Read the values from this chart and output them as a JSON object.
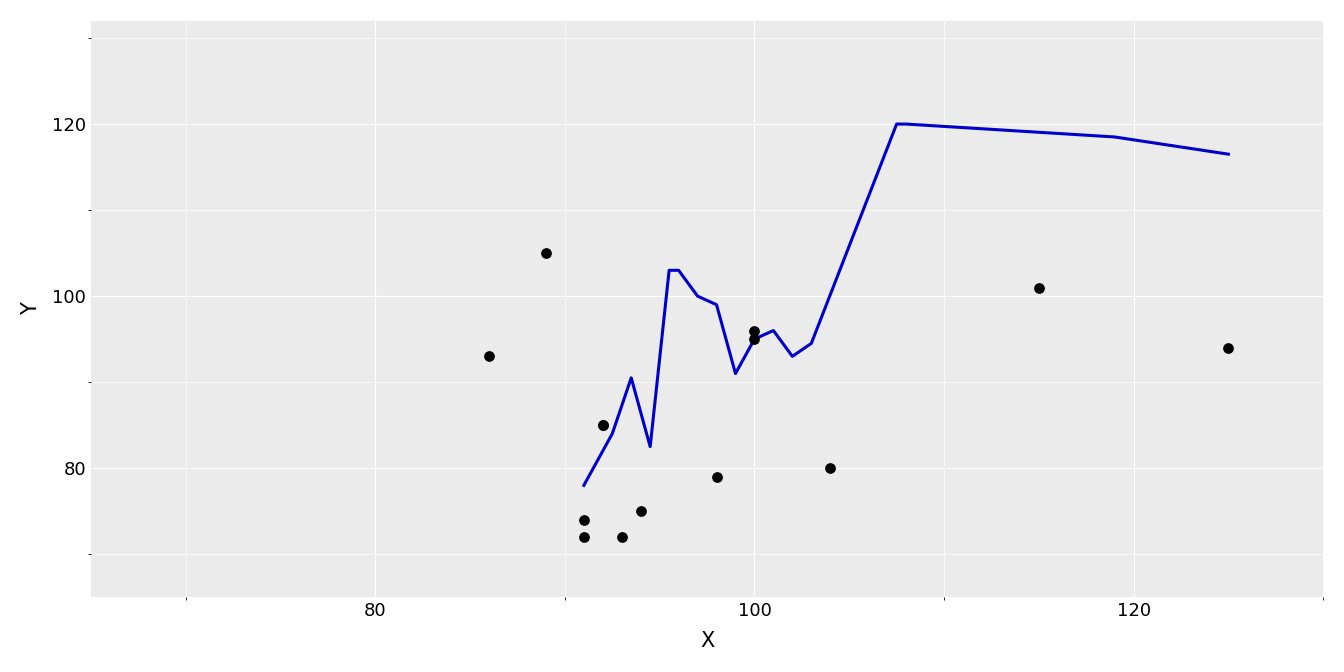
{
  "points_x": [
    86,
    89,
    91,
    91,
    92,
    92,
    93,
    94,
    98,
    100,
    100,
    104,
    115,
    125
  ],
  "points_y": [
    93,
    105,
    74,
    72,
    85,
    85,
    72,
    75,
    79,
    96,
    95,
    80,
    101,
    94
  ],
  "line_x": [
    91.0,
    92.5,
    93.5,
    94.5,
    95.5,
    96.0,
    97.0,
    98.0,
    99.0,
    100.0,
    101.0,
    102.0,
    103.0,
    107.5,
    108.0,
    119.0,
    125.0
  ],
  "line_y": [
    78.0,
    84.0,
    90.5,
    82.5,
    103.0,
    103.0,
    100.0,
    99.0,
    91.0,
    95.0,
    96.0,
    93.0,
    94.5,
    120.0,
    120.0,
    118.5,
    116.5
  ],
  "xlim": [
    65.0,
    130.0
  ],
  "ylim": [
    65.0,
    132.0
  ],
  "xticks": [
    80,
    100,
    120
  ],
  "yticks": [
    80,
    100,
    120
  ],
  "xlabel": "X",
  "ylabel": "Y",
  "point_color": "#000000",
  "line_color": "#0000CC",
  "panel_background": "#EBEBEB",
  "plot_background": "#ffffff",
  "grid_color": "#ffffff",
  "point_size": 45,
  "line_width": 2.2,
  "xlabel_fontsize": 15,
  "ylabel_fontsize": 15,
  "tick_fontsize": 13,
  "spine_color": "#ffffff"
}
